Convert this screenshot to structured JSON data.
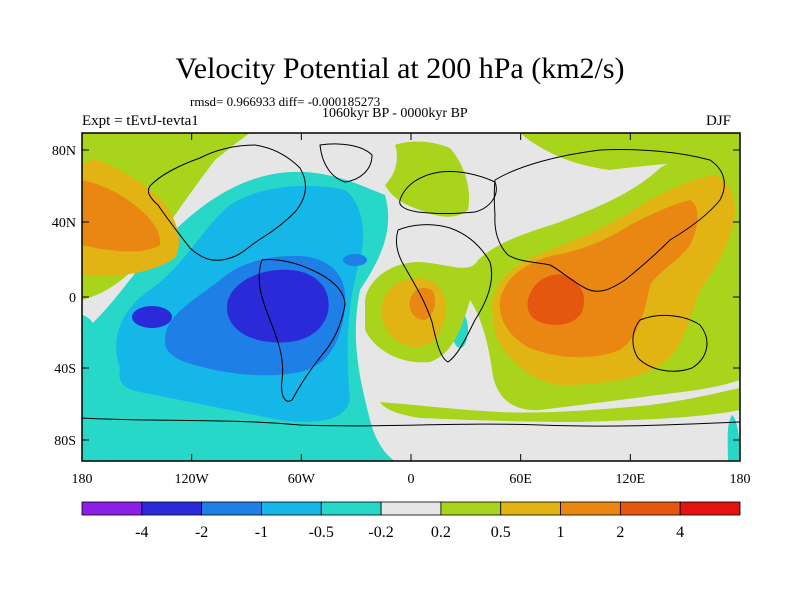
{
  "title": "Velocity Potential at 200 hPa (km2/s)",
  "stats": "rmsd= 0.966933 diff= -0.000185273",
  "period": "1060kyr BP - 0000kyr BP",
  "experiment": "Expt = tEvtJ-tevta1",
  "season": "DJF",
  "axes": {
    "y_ticks": [
      "80N",
      "40N",
      "0",
      "40S",
      "80S"
    ],
    "x_ticks": [
      "180",
      "120W",
      "60W",
      "0",
      "60E",
      "120E",
      "180"
    ]
  },
  "colorbar": {
    "labels": [
      "-4",
      "-2",
      "-1",
      "-0.5",
      "-0.2",
      "0.2",
      "0.5",
      "1",
      "2",
      "4"
    ],
    "colors": [
      "#8a1fe6",
      "#2a2ad8",
      "#1e7fe6",
      "#15b6e8",
      "#27d8c8",
      "#e6e6e6",
      "#a8d51c",
      "#e1b414",
      "#e98712",
      "#e5560e",
      "#e3140e"
    ]
  },
  "map_colors": {
    "background": "#e6e6e6",
    "land_outline": "#000000"
  }
}
